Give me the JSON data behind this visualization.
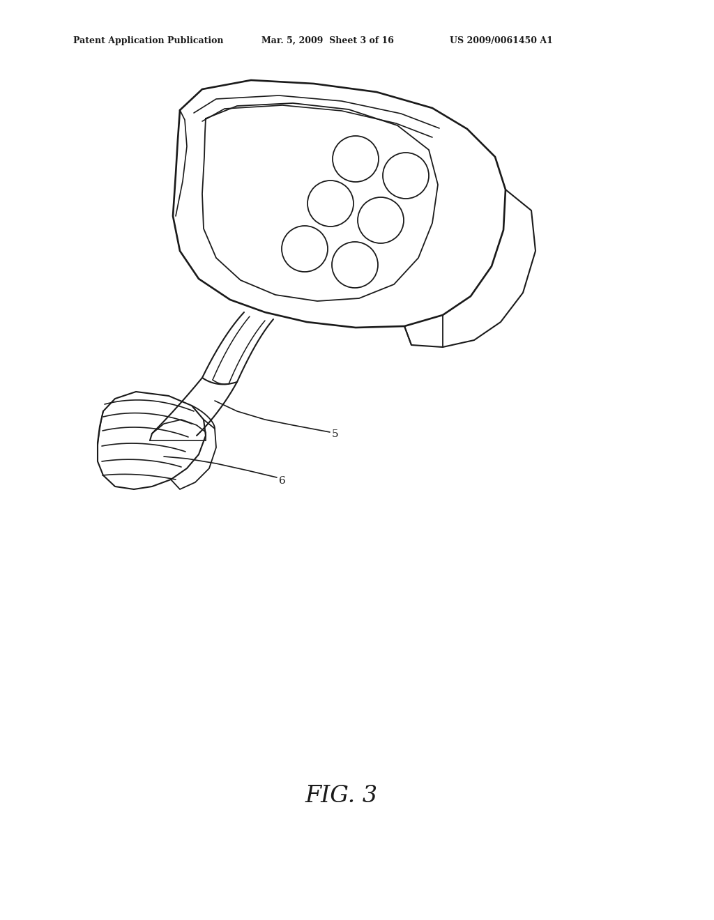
{
  "title": "FIG. 3",
  "header_left": "Patent Application Publication",
  "header_mid": "Mar. 5, 2009  Sheet 3 of 16",
  "header_right": "US 2009/0061450 A1",
  "label_5": "5",
  "label_6": "6",
  "bg_color": "#ffffff",
  "line_color": "#1a1a1a",
  "line_width": 1.5
}
